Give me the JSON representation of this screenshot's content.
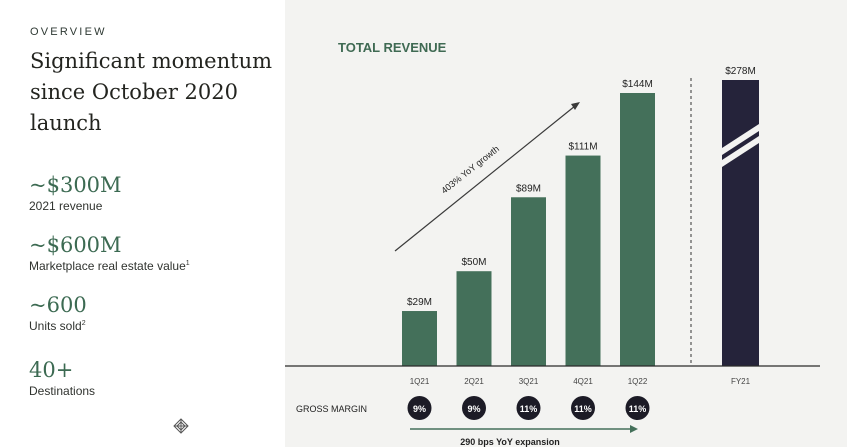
{
  "left": {
    "eyebrow": "OVERVIEW",
    "headline": "Significant momentum since October 2020 launch",
    "stats": [
      {
        "value": "~$300M",
        "label": "2021 revenue",
        "footnote": ""
      },
      {
        "value": "~$600M",
        "label": "Marketplace real estate value",
        "footnote": "1"
      },
      {
        "value": "~600",
        "label": "Units sold",
        "footnote": "2"
      },
      {
        "value": "40+",
        "label": "Destinations",
        "footnote": ""
      }
    ]
  },
  "colors": {
    "bar": "#44705a",
    "fy_bar": "#25233a",
    "title": "#3f6a53",
    "badge": "#1c1b26",
    "axis": "#2a2a2a"
  },
  "chart_data": {
    "type": "bar",
    "title": "TOTAL REVENUE",
    "categories": [
      "1Q21",
      "2Q21",
      "3Q21",
      "4Q21",
      "1Q22"
    ],
    "values": [
      29,
      50,
      89,
      111,
      144
    ],
    "value_labels": [
      "$29M",
      "$50M",
      "$89M",
      "$111M",
      "$144M"
    ],
    "unit": "$M",
    "fy_bar": {
      "category": "FY21",
      "value": 278,
      "label": "$278M",
      "axis_break": true
    },
    "growth_annotation": "403% YoY growth",
    "gross_margin": {
      "label": "GROSS MARGIN",
      "values": [
        "9%",
        "9%",
        "11%",
        "11%",
        "11%"
      ],
      "expansion_annotation": "290 bps YoY expansion"
    }
  }
}
